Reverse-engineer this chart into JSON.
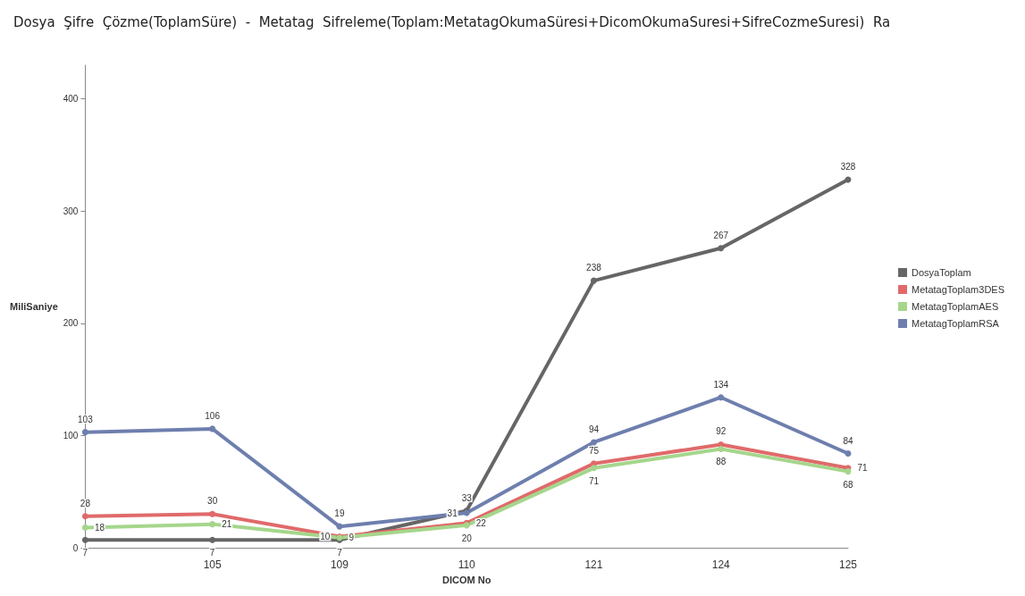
{
  "chart_data": {
    "type": "line",
    "title": "Dosya  Şifre  Çözme(ToplamSüre)  -  Metatag  Sifreleme(Toplam:MetatagOkumaSüresi+DicomOkumaSuresi+SifreCozmeSuresi)  Ra",
    "xlabel": "DICOM No",
    "ylabel": "MiliSaniye",
    "categories": [
      null,
      "105",
      "109",
      "110",
      "121",
      "124",
      "125"
    ],
    "series": [
      {
        "name": "DosyaToplam",
        "color": "#666666",
        "values": [
          7,
          7,
          7,
          33,
          238,
          267,
          328
        ]
      },
      {
        "name": "MetatagToplam3DES",
        "color": "#e06a6a",
        "values": [
          28,
          30,
          10,
          22,
          75,
          92,
          71
        ]
      },
      {
        "name": "MetatagToplamAES",
        "color": "#a5d68c",
        "values": [
          18,
          21,
          9,
          20,
          71,
          88,
          68
        ]
      },
      {
        "name": "MetatagToplamRSA",
        "color": "#6e7fae",
        "values": [
          103,
          106,
          19,
          31,
          94,
          134,
          84
        ]
      }
    ],
    "ylim": [
      0,
      430
    ],
    "yticks": [
      0,
      100,
      200,
      300,
      400
    ],
    "grid": false,
    "legend": "right",
    "marker": "circle",
    "data_labels": true
  }
}
